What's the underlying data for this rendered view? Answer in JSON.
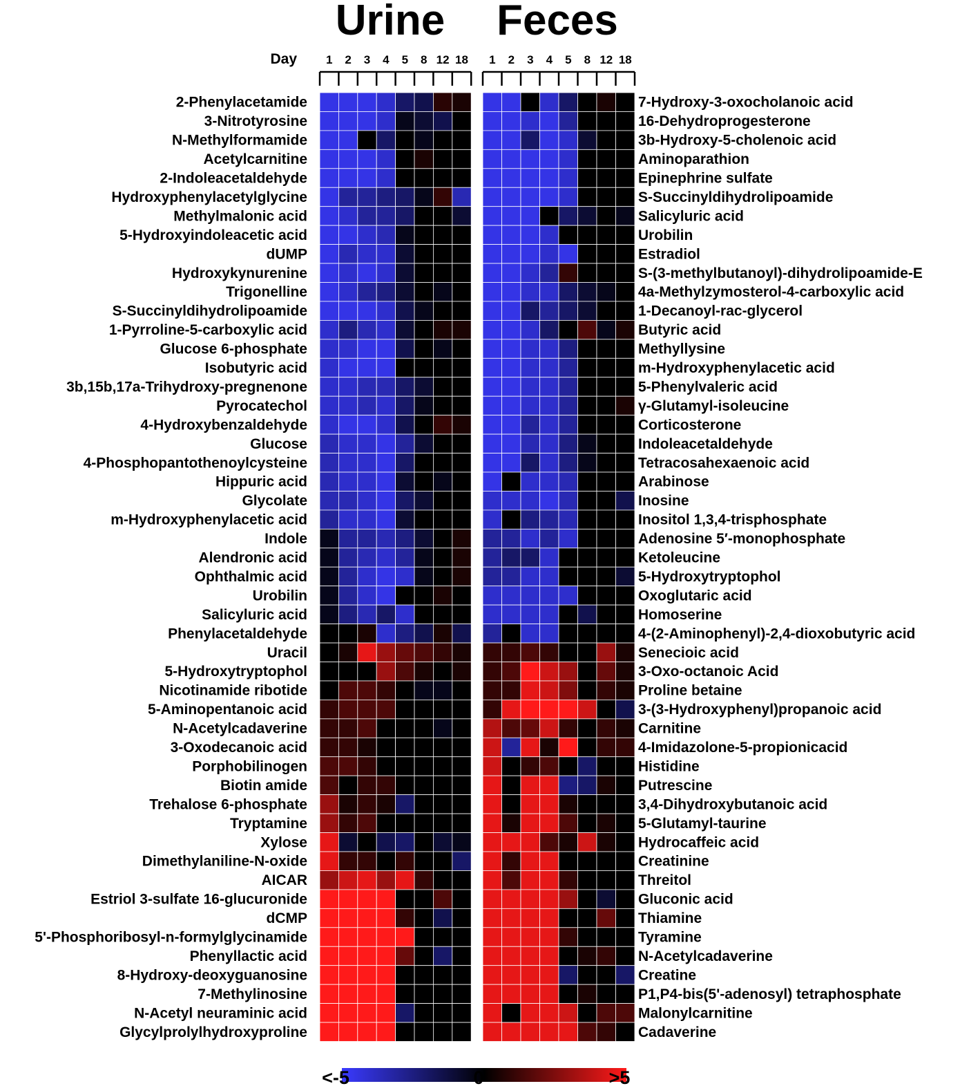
{
  "chart_data": {
    "type": "heatmap",
    "days_label": "Day",
    "scale": {
      "min": -5,
      "max": 5,
      "min_label": "<-5",
      "mid_label": "0",
      "max_label": ">5",
      "colors": {
        "low": "#3a3aff",
        "mid": "#000000",
        "high": "#ff1a1a"
      }
    },
    "panels": [
      {
        "title": "Urine",
        "days": [
          "1",
          "2",
          "3",
          "4",
          "5",
          "8",
          "12",
          "18"
        ],
        "rows": [
          "2-Phenylacetamide",
          "3-Nitrotyrosine",
          "N-Methylformamide",
          "Acetylcarnitine",
          "2-Indoleacetaldehyde",
          "Hydroxyphenylacetylglycine",
          "Methylmalonic acid",
          "5-Hydroxyindoleacetic acid",
          "dUMP",
          "Hydroxykynurenine",
          "Trigonelline",
          "S-Succinyldihydrolipoamide",
          "1-Pyrroline-5-carboxylic acid",
          "Glucose 6-phosphate",
          "Isobutyric acid",
          "3b,15b,17a-Trihydroxy-pregnenone",
          "Pyrocatechol",
          "4-Hydroxybenzaldehyde",
          "Glucose",
          "4-Phosphopantothenoylcysteine",
          "Hippuric acid",
          "Glycolate",
          "m-Hydroxyphenylacetic acid",
          "Indole",
          "Alendronic acid",
          "Ophthalmic acid",
          "Urobilin",
          "Salicyluric acid",
          "Phenylacetaldehyde",
          "Uracil",
          "5-Hydroxytryptophol",
          "Nicotinamide ribotide",
          "5-Aminopentanoic acid",
          "N-Acetylcadaverine",
          "3-Oxodecanoic acid",
          "Porphobilinogen",
          "Biotin amide",
          "Trehalose 6-phosphate",
          "Tryptamine",
          "Xylose",
          "Dimethylaniline-N-oxide",
          "AICAR",
          "Estriol 3-sulfate 16-glucuronide",
          "dCMP",
          "5'-Phosphoribosyl-n-formylglycinamide",
          "Phenyllactic acid",
          "8-Hydroxy-deoxyguanosine",
          "7-Methylinosine",
          "N-Acetyl neuraminic acid",
          "Glycylprolylhydroxyproline"
        ],
        "values": [
          [
            -4.5,
            -4.5,
            -4.5,
            -4,
            -2,
            -1.5,
            0.8,
            0.5
          ],
          [
            -4.5,
            -4.5,
            -4.5,
            -4,
            -0.5,
            -1,
            -1.5,
            0
          ],
          [
            -4.5,
            -4.5,
            0,
            -2,
            0,
            -0.5,
            0,
            0
          ],
          [
            -4.5,
            -4.5,
            -4.5,
            -4,
            0,
            0.5,
            0,
            0
          ],
          [
            -4.5,
            -4.5,
            -4.5,
            -4,
            0,
            0,
            0,
            0
          ],
          [
            -4.5,
            -3,
            -3,
            -2.5,
            -2,
            -0.5,
            1,
            -3.5
          ],
          [
            -4.5,
            -4,
            -3,
            -3,
            -2,
            0,
            0,
            -1
          ],
          [
            -4.5,
            -4.5,
            -4,
            -3.5,
            -0.5,
            0,
            0,
            0
          ],
          [
            -4.5,
            -3.5,
            -4,
            -4,
            -1,
            0,
            0,
            0
          ],
          [
            -4.5,
            -4,
            -4.5,
            -4,
            -1,
            0,
            0,
            0
          ],
          [
            -4.5,
            -4,
            -3,
            -2.5,
            -1,
            0,
            -0.5,
            0
          ],
          [
            -4.5,
            -4.5,
            -4.5,
            -4,
            -1.5,
            -0.5,
            0,
            0
          ],
          [
            -4,
            -2.5,
            -3.5,
            -4,
            -1,
            0,
            0.5,
            0.5
          ],
          [
            -4,
            -4,
            -4.5,
            -4.5,
            -1.5,
            0,
            -0.5,
            0
          ],
          [
            -4,
            -4.5,
            -4.5,
            -4.5,
            0,
            0,
            0,
            0
          ],
          [
            -4,
            -4,
            -3.5,
            -3.5,
            -2,
            -1,
            0,
            0
          ],
          [
            -4,
            -4,
            -3.5,
            -4,
            -2,
            -0.5,
            0,
            0
          ],
          [
            -4,
            -4.5,
            -4.5,
            -4,
            -1.5,
            0,
            1,
            0.5
          ],
          [
            -3.5,
            -4,
            -4,
            -4.5,
            -3,
            -1,
            0,
            0
          ],
          [
            -3.5,
            -4,
            -4,
            -4.5,
            -2,
            0,
            0,
            0
          ],
          [
            -3.5,
            -4,
            -4,
            -4.5,
            -1,
            0,
            -0.5,
            0
          ],
          [
            -3.5,
            -3.5,
            -4,
            -4.5,
            -2,
            -1,
            0,
            0
          ],
          [
            -3,
            -4,
            -4,
            -4.5,
            -1,
            0,
            0,
            0
          ],
          [
            -0.5,
            -3,
            -3,
            -3.5,
            -2.5,
            -1,
            0,
            0.5
          ],
          [
            -0.5,
            -3,
            -3.5,
            -4,
            -3,
            -0.5,
            0,
            0.5
          ],
          [
            -0.5,
            -3,
            -4,
            -4.5,
            -4,
            -0.5,
            0,
            0.5
          ],
          [
            -0.5,
            -3,
            -4,
            -4.5,
            0,
            0,
            0.5,
            0
          ],
          [
            -0.5,
            -2.5,
            -3.5,
            -2,
            -4,
            0,
            0,
            0
          ],
          [
            0,
            0,
            0.5,
            -4,
            -2.5,
            -1.5,
            0.5,
            -1.5
          ],
          [
            0,
            0.5,
            4.5,
            3,
            2,
            1.5,
            1,
            0.5
          ],
          [
            0,
            0,
            0,
            3,
            1.5,
            0.5,
            0,
            0.5
          ],
          [
            0,
            1.5,
            1.5,
            1,
            0,
            -0.5,
            -0.5,
            0
          ],
          [
            1,
            1.5,
            1.5,
            1.5,
            0,
            0,
            0,
            0
          ],
          [
            1,
            1,
            1.5,
            0,
            0,
            0,
            -0.5,
            0
          ],
          [
            1,
            1,
            0.5,
            0,
            0,
            0,
            0,
            0
          ],
          [
            1.5,
            1.5,
            1,
            0,
            0,
            0,
            0,
            0
          ],
          [
            1.5,
            0,
            1,
            1,
            0,
            0,
            0,
            0
          ],
          [
            3,
            0.5,
            1,
            0.5,
            -2,
            0,
            0,
            0
          ],
          [
            3,
            1,
            1.5,
            0,
            0,
            0,
            0,
            0
          ],
          [
            4.5,
            -1,
            0,
            -1.5,
            -2,
            0,
            -1,
            -0.5
          ],
          [
            4.5,
            1,
            1,
            0,
            1,
            0,
            0,
            -2
          ],
          [
            3,
            4,
            4.5,
            3,
            4.5,
            1,
            0,
            0
          ],
          [
            5,
            5,
            5,
            5,
            0,
            0,
            1.5,
            0
          ],
          [
            5,
            5,
            5,
            5,
            1,
            0,
            -1.5,
            0
          ],
          [
            5,
            5,
            5,
            5,
            5,
            0,
            0,
            0
          ],
          [
            5,
            5,
            5,
            5,
            2,
            0,
            -2,
            0
          ],
          [
            5,
            5,
            5,
            5,
            0,
            0,
            0,
            0
          ],
          [
            5,
            5,
            5,
            5,
            0,
            0,
            0,
            0
          ],
          [
            5,
            5,
            5,
            5,
            -2,
            0,
            0,
            0
          ],
          [
            5,
            5,
            5,
            5,
            0,
            0,
            0,
            0
          ]
        ]
      },
      {
        "title": "Feces",
        "days": [
          "1",
          "2",
          "3",
          "4",
          "5",
          "8",
          "12",
          "18"
        ],
        "rows": [
          "7-Hydroxy-3-oxocholanoic acid",
          "16-Dehydroprogesterone",
          "3b-Hydroxy-5-cholenoic acid",
          "Aminoparathion",
          "Epinephrine sulfate",
          "S-Succinyldihydrolipoamide",
          "Salicyluric acid",
          "Urobilin",
          "Estradiol",
          "S-(3-methylbutanoyl)-dihydrolipoamide-E",
          "4a-Methylzymosterol-4-carboxylic acid",
          "1-Decanoyl-rac-glycerol",
          "Butyric acid",
          "Methyllysine",
          "m-Hydroxyphenylacetic acid",
          "5-Phenylvaleric acid",
          "γ-Glutamyl-isoleucine",
          "Corticosterone",
          "Indoleacetaldehyde",
          "Tetracosahexaenoic acid",
          "Arabinose",
          "Inosine",
          "Inositol 1,3,4-trisphosphate",
          "Adenosine 5′-monophosphate",
          "Ketoleucine",
          "5-Hydroxytryptophol",
          "Oxoglutaric acid",
          "Homoserine",
          "4-(2-Aminophenyl)-2,4-dioxobutyric acid",
          "Senecioic acid",
          "3-Oxo-octanoic Acid",
          "Proline betaine",
          "3-(3-Hydroxyphenyl)propanoic acid",
          "Carnitine",
          "4-Imidazolone-5-propionicacid",
          "Histidine",
          "Putrescine",
          "3,4-Dihydroxybutanoic acid",
          "5-Glutamyl-taurine",
          "Hydrocaffeic acid",
          "Creatinine",
          "Threitol",
          "Gluconic acid",
          "Thiamine",
          "Tyramine",
          "N-Acetylcadaverine",
          "Creatine",
          "P1,P4-bis(5'-adenosyl) tetraphosphate",
          "Malonylcarnitine",
          "Cadaverine"
        ],
        "values": [
          [
            -4.5,
            -4.5,
            0,
            -4,
            -2,
            0,
            0.5,
            0
          ],
          [
            -4.5,
            -4.5,
            -4,
            -4.5,
            -3,
            0,
            0,
            0
          ],
          [
            -4.5,
            -4.5,
            -2,
            -4.5,
            -4,
            -1,
            0,
            0
          ],
          [
            -4.5,
            -4.5,
            -4.5,
            -4.5,
            -4,
            0,
            0,
            0
          ],
          [
            -4.5,
            -4.5,
            -4.5,
            -4.5,
            -4,
            0,
            0,
            0
          ],
          [
            -4.5,
            -4.5,
            -4.5,
            -4.5,
            -4,
            0,
            0,
            0
          ],
          [
            -4.5,
            -4.5,
            -4.5,
            0,
            -2,
            -1,
            0,
            -0.5
          ],
          [
            -4.5,
            -4.5,
            -4.5,
            -4,
            0,
            0,
            0,
            0
          ],
          [
            -4.5,
            -4.5,
            -4.5,
            -4,
            -4.5,
            0,
            0,
            0
          ],
          [
            -4.5,
            -4.5,
            -4,
            -3,
            1,
            0,
            0,
            0
          ],
          [
            -4.5,
            -4.5,
            -4,
            -4,
            -2,
            -1,
            -0.5,
            0
          ],
          [
            -4.5,
            -4.5,
            -2,
            -3,
            -2,
            -1,
            0,
            0
          ],
          [
            -4.5,
            -4.5,
            -4,
            -2,
            0,
            1.5,
            -0.5,
            0.5
          ],
          [
            -4.5,
            -4.5,
            -4,
            -4,
            -2.5,
            0,
            0,
            0
          ],
          [
            -4.5,
            -4.5,
            -4,
            -4,
            -3,
            0,
            0,
            0
          ],
          [
            -4.5,
            -4.5,
            -4,
            -4,
            -3,
            0,
            0,
            0
          ],
          [
            -4.5,
            -4.5,
            -4,
            -4,
            -3,
            0,
            0,
            0.5
          ],
          [
            -4.5,
            -4.5,
            -3,
            -4,
            -3,
            0,
            0,
            0
          ],
          [
            -4.5,
            -4.5,
            -3.5,
            -4,
            -2.5,
            -0.5,
            0,
            0
          ],
          [
            -4.5,
            -4.5,
            -2,
            -4,
            -2.5,
            -0.5,
            0,
            0
          ],
          [
            -4.5,
            0,
            -4,
            -4,
            -3.5,
            0,
            0,
            0
          ],
          [
            -4,
            -4,
            -4,
            -4.5,
            -3.5,
            0,
            0,
            -1.5
          ],
          [
            -4,
            0,
            -2.5,
            -3,
            -3.5,
            0,
            0,
            0
          ],
          [
            -3,
            -3,
            -4,
            -3,
            -4,
            0,
            0,
            0
          ],
          [
            -3,
            -2,
            -2,
            -4,
            0,
            0,
            0,
            0
          ],
          [
            -3,
            -3,
            -4,
            -4,
            0,
            0,
            0,
            -1
          ],
          [
            -4,
            -4,
            -4,
            -4,
            -4,
            0,
            0,
            0
          ],
          [
            -4,
            -4,
            -4,
            -4,
            0,
            -1.5,
            0,
            0
          ],
          [
            -3,
            0,
            -4,
            -4,
            0,
            0,
            0,
            0
          ],
          [
            1,
            1,
            1.5,
            1,
            0,
            0,
            3,
            0.5
          ],
          [
            1,
            1.5,
            5,
            4,
            3,
            0,
            2,
            0.5
          ],
          [
            1,
            1,
            4.5,
            4,
            2.5,
            0,
            1,
            0.5
          ],
          [
            1,
            4.5,
            5,
            5,
            5,
            4,
            0,
            -1.5
          ],
          [
            3.5,
            1.5,
            2,
            4,
            1,
            0,
            1,
            0.5
          ],
          [
            4,
            -3,
            4.5,
            0.5,
            5,
            0,
            1,
            1
          ],
          [
            4,
            0,
            1,
            1.5,
            0,
            -2,
            0,
            0
          ],
          [
            4.5,
            0,
            4.5,
            4.5,
            -2.5,
            -2,
            0.5,
            0
          ],
          [
            4.5,
            0,
            4.5,
            4.5,
            0.5,
            0,
            0,
            0
          ],
          [
            4.5,
            0.5,
            4.5,
            4.5,
            1.5,
            0,
            0.5,
            0
          ],
          [
            4.5,
            4.5,
            4.5,
            1.5,
            0.5,
            4,
            0.5,
            0
          ],
          [
            4.5,
            1,
            4.5,
            4.5,
            0,
            0,
            0,
            0
          ],
          [
            4.5,
            1.5,
            4.5,
            4.5,
            1,
            0,
            0,
            0
          ],
          [
            4.5,
            4.5,
            4.5,
            4.5,
            3,
            0,
            -1,
            0
          ],
          [
            4.5,
            4.5,
            4.5,
            4.5,
            0,
            0,
            2,
            0
          ],
          [
            4.5,
            4.5,
            4.5,
            4.5,
            1,
            0,
            0,
            0
          ],
          [
            4.5,
            4.5,
            4.5,
            4.5,
            0,
            0.5,
            1,
            0
          ],
          [
            4.5,
            4.5,
            4.5,
            4.5,
            -2,
            0,
            0,
            -2
          ],
          [
            4.5,
            4.5,
            4.5,
            4.5,
            0,
            0.5,
            0,
            0
          ],
          [
            4.5,
            0,
            4.5,
            4.5,
            4,
            0,
            1.5,
            1.5
          ],
          [
            4.5,
            4.5,
            4.5,
            4.5,
            4.5,
            1.5,
            1,
            0
          ]
        ]
      }
    ]
  }
}
